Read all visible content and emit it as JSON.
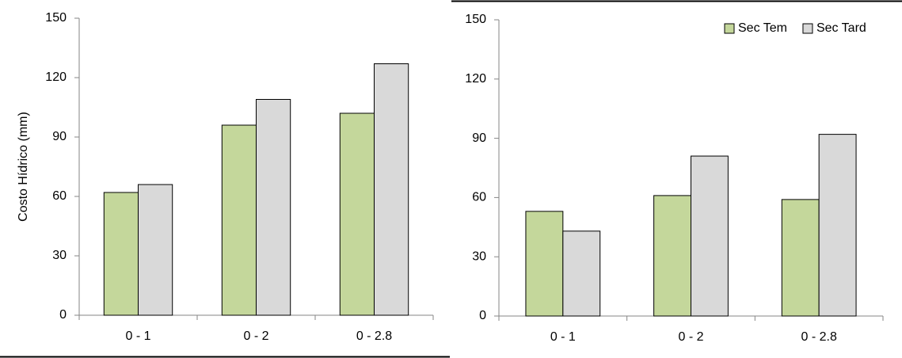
{
  "chart_data": [
    {
      "type": "bar",
      "y_label": "Costo Hídrico (mm)",
      "categories": [
        "0 - 1",
        "0 - 2",
        "0 - 2.8"
      ],
      "series": [
        {
          "color": "#c4d79b",
          "values": [
            62,
            96,
            102
          ]
        },
        {
          "color": "#d9d9d9",
          "values": [
            66,
            109,
            127
          ]
        }
      ],
      "ylim": [
        0,
        150
      ],
      "yticks": [
        0,
        30,
        60,
        90,
        120,
        150
      ]
    },
    {
      "type": "bar",
      "categories": [
        "0 - 1",
        "0 - 2",
        "0 - 2.8"
      ],
      "series": [
        {
          "name": "Sec Tem",
          "color": "#c4d79b",
          "values": [
            53,
            61,
            59
          ]
        },
        {
          "name": "Sec Tard",
          "color": "#d9d9d9",
          "values": [
            43,
            81,
            92
          ]
        }
      ],
      "ylim": [
        0,
        150
      ],
      "yticks": [
        0,
        30,
        60,
        90,
        120,
        150
      ],
      "legend": "upper right"
    }
  ]
}
